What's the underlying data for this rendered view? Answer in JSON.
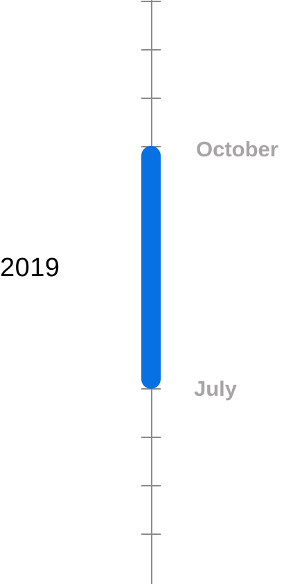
{
  "timeline": {
    "year_label": "2019",
    "range_end_label": "October",
    "range_start_label": "July",
    "colors": {
      "accent": "#0770e3",
      "axis": "#8a8a8a",
      "month_text": "#a7a4a6",
      "year_text": "#000000"
    }
  }
}
